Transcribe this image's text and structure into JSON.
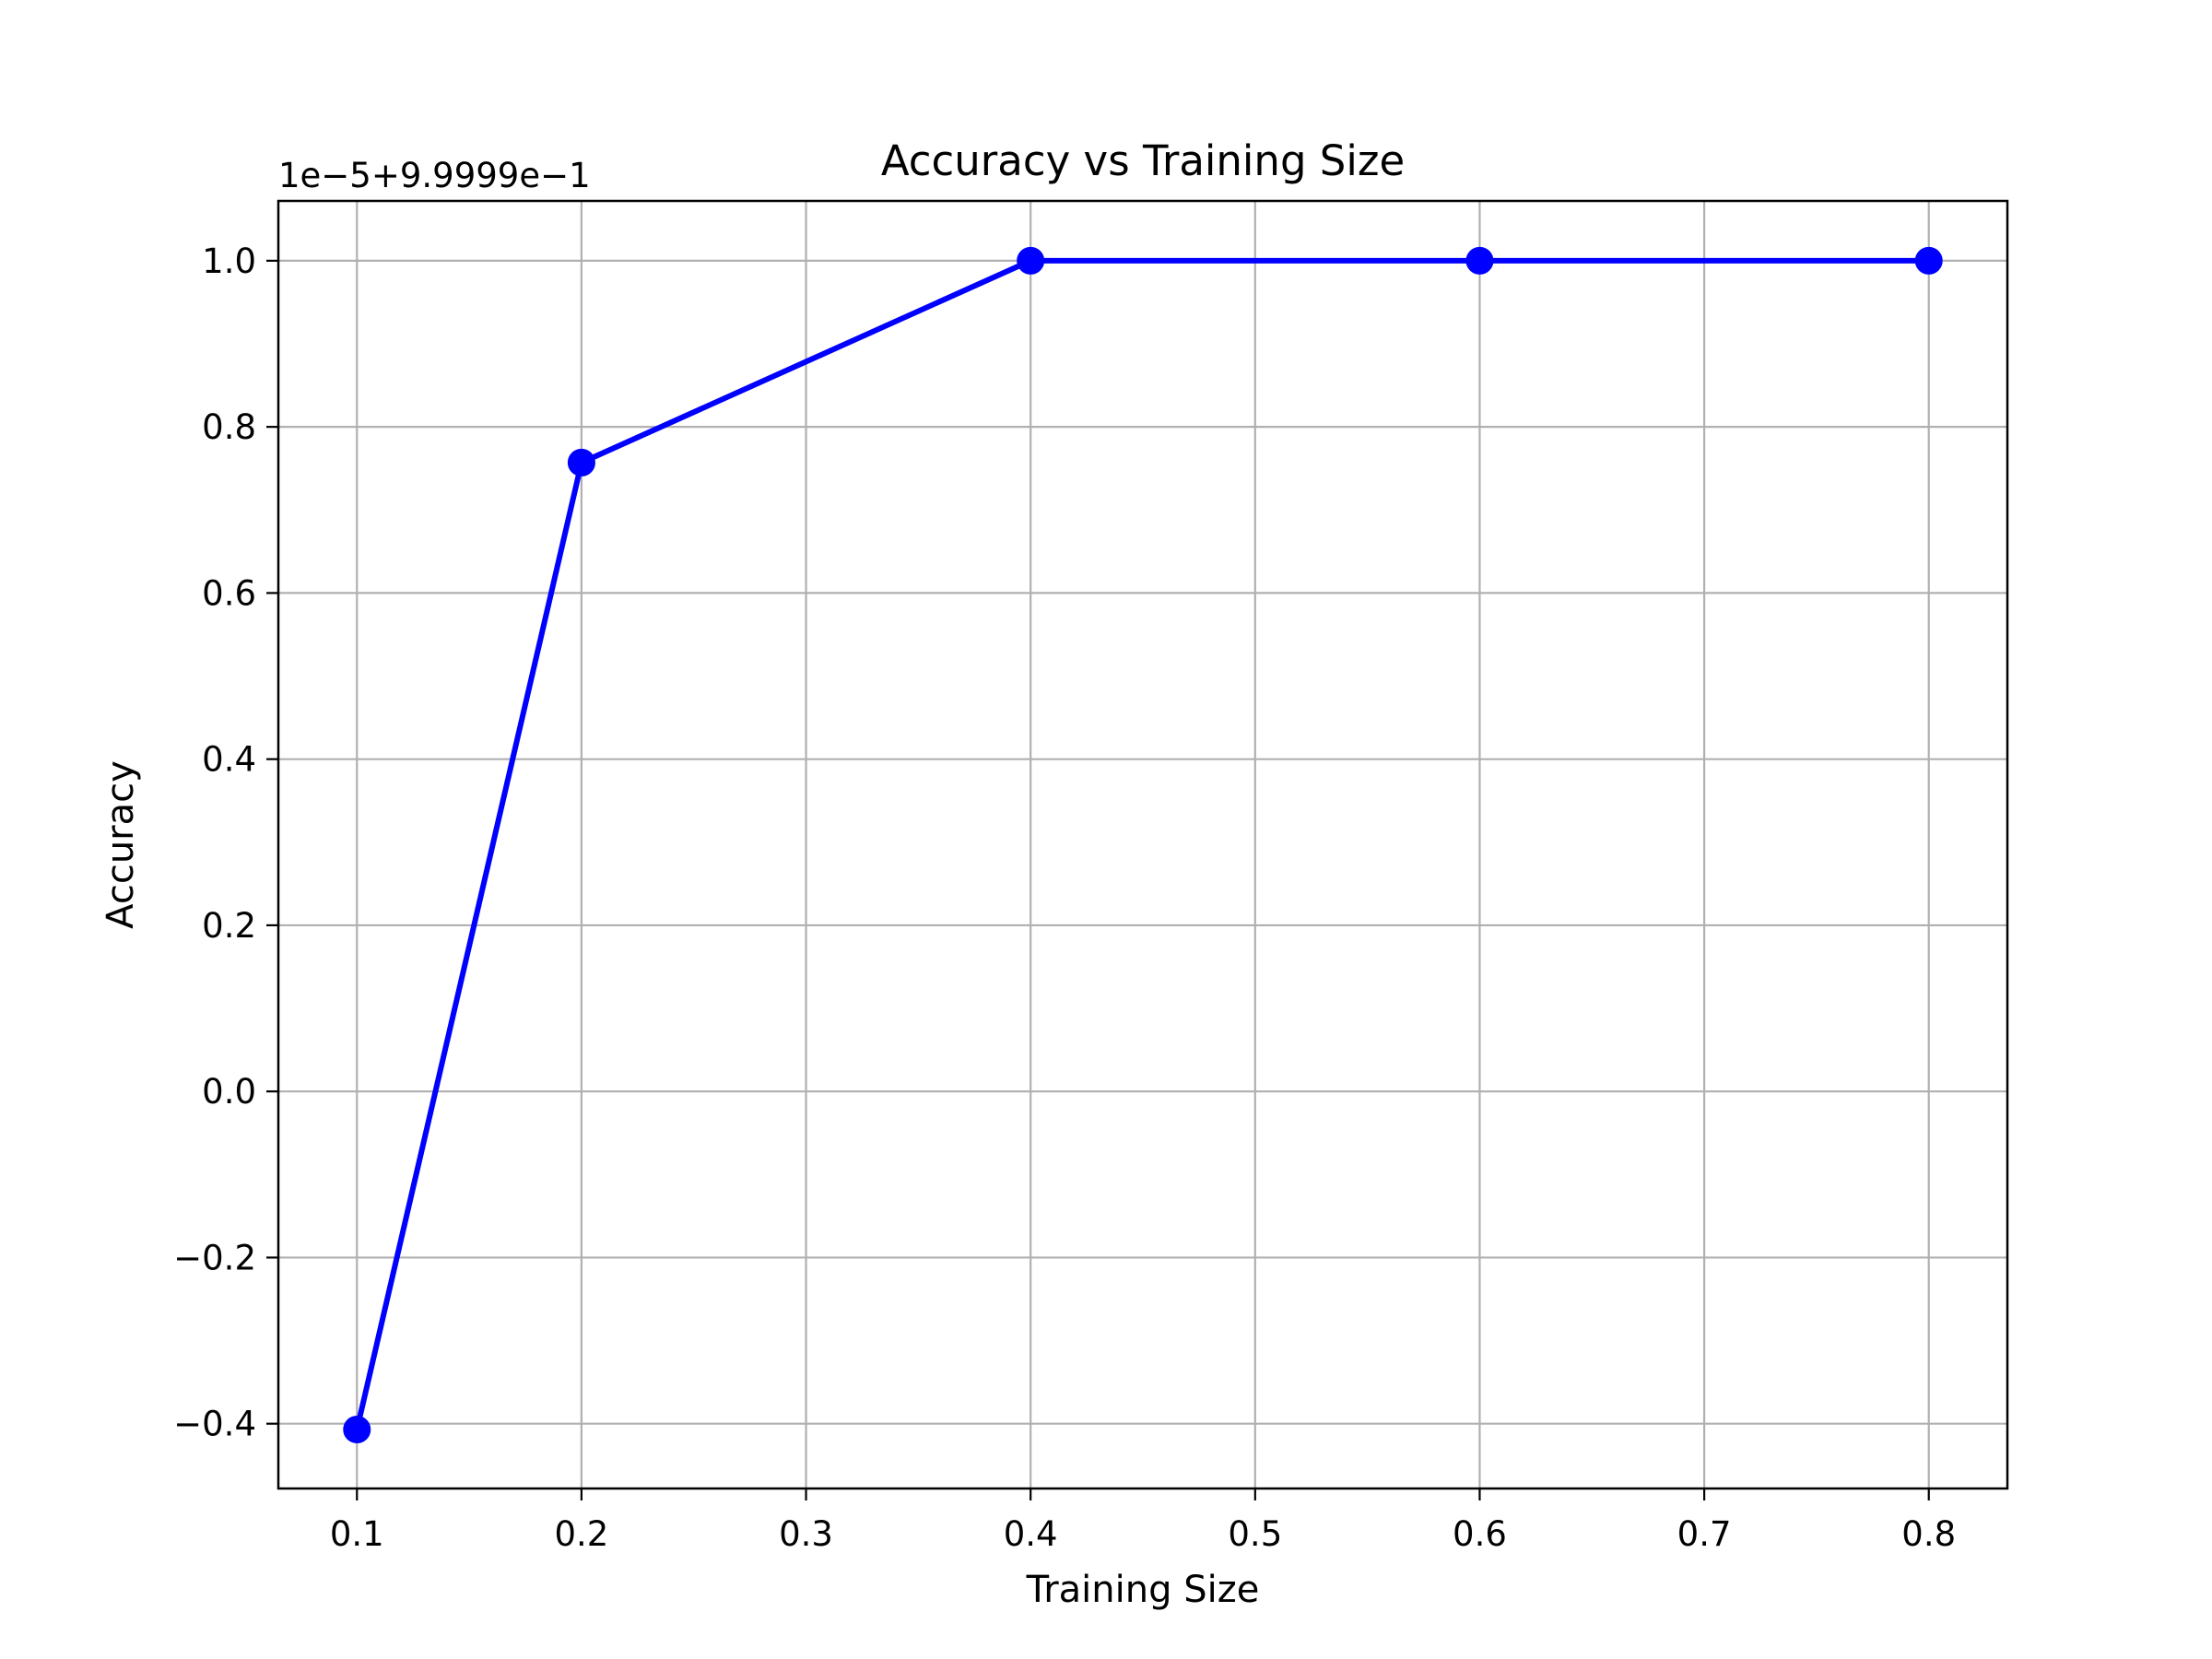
{
  "chart_data": {
    "type": "line",
    "title": "Accuracy vs Training Size",
    "xlabel": "Training Size",
    "ylabel": "Accuracy",
    "y_offset_label": "1e−5+9.9999e−1",
    "x": [
      0.1,
      0.2,
      0.4,
      0.6,
      0.8
    ],
    "series": [
      {
        "values": [
          -0.407,
          0.757,
          1.0,
          1.0,
          1.0
        ],
        "color": "#0000ff",
        "marker": "circle"
      }
    ],
    "xlim": [
      0.065,
      0.835
    ],
    "ylim": [
      -0.478,
      1.072
    ],
    "x_ticks": [
      {
        "value": 0.1,
        "label": "0.1"
      },
      {
        "value": 0.2,
        "label": "0.2"
      },
      {
        "value": 0.3,
        "label": "0.3"
      },
      {
        "value": 0.4,
        "label": "0.4"
      },
      {
        "value": 0.5,
        "label": "0.5"
      },
      {
        "value": 0.6,
        "label": "0.6"
      },
      {
        "value": 0.7,
        "label": "0.7"
      },
      {
        "value": 0.8,
        "label": "0.8"
      }
    ],
    "y_ticks": [
      {
        "value": -0.4,
        "label": "−0.4"
      },
      {
        "value": -0.2,
        "label": "−0.2"
      },
      {
        "value": 0.0,
        "label": "0.0"
      },
      {
        "value": 0.2,
        "label": "0.2"
      },
      {
        "value": 0.4,
        "label": "0.4"
      },
      {
        "value": 0.6,
        "label": "0.6"
      },
      {
        "value": 0.8,
        "label": "0.8"
      },
      {
        "value": 1.0,
        "label": "1.0"
      }
    ],
    "grid": true,
    "colors": {
      "grid": "#b0b0b0",
      "axes": "#000000",
      "background": "#ffffff"
    }
  }
}
